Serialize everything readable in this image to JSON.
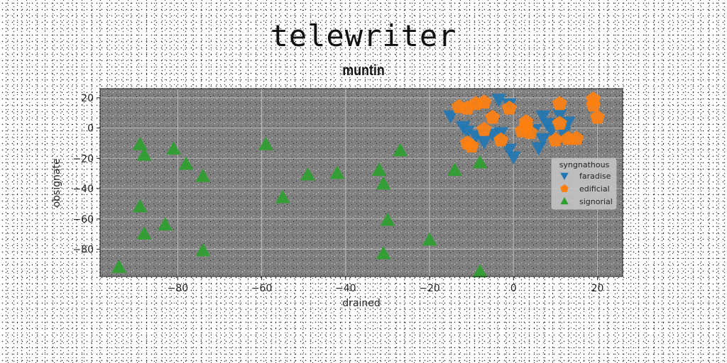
{
  "chart_data": {
    "type": "scatter",
    "title": "telewriter",
    "subtitle": "muntin",
    "xlabel": "drained",
    "ylabel": "obsignate",
    "xlim": [
      -98.5,
      26
    ],
    "ylim": [
      -98,
      26
    ],
    "xticks": [
      -80,
      -60,
      -40,
      -20,
      0,
      20
    ],
    "yticks": [
      -80,
      -60,
      -40,
      -20,
      0,
      20
    ],
    "xtick_labels": [
      "−80",
      "−60",
      "−40",
      "−20",
      "0",
      "20"
    ],
    "ytick_labels": [
      "−80",
      "−60",
      "−40",
      "−20",
      "0",
      "20"
    ],
    "grid": true,
    "legend_title": "syngnathous",
    "legend_position": "right",
    "series": [
      {
        "name": "faradise",
        "marker": "triangle-down",
        "color": "#1f77b4",
        "points": [
          [
            -3.5,
            19
          ],
          [
            -1,
            16
          ],
          [
            -15,
            8
          ],
          [
            -12,
            1
          ],
          [
            -11,
            -2
          ],
          [
            -9,
            -5
          ],
          [
            -7,
            -9
          ],
          [
            -5,
            -4
          ],
          [
            -3,
            -3
          ],
          [
            -1,
            -14
          ],
          [
            0,
            -19
          ],
          [
            7,
            8
          ],
          [
            8,
            3
          ],
          [
            9,
            -1
          ],
          [
            7,
            -7
          ],
          [
            6,
            -13
          ],
          [
            13,
            4
          ],
          [
            12,
            -3
          ],
          [
            11,
            9
          ],
          [
            5,
            -1
          ],
          [
            3,
            -2
          ]
        ]
      },
      {
        "name": "edificial",
        "marker": "pentagon",
        "color": "#ff7f0e",
        "points": [
          [
            -13,
            14
          ],
          [
            -11,
            13
          ],
          [
            -9,
            16
          ],
          [
            -7,
            17
          ],
          [
            -5,
            7
          ],
          [
            -1,
            13
          ],
          [
            3,
            1
          ],
          [
            3,
            4
          ],
          [
            4,
            -3
          ],
          [
            -7,
            -1
          ],
          [
            -11,
            -10
          ],
          [
            -10,
            -12
          ],
          [
            -3,
            -8
          ],
          [
            10,
            -8
          ],
          [
            11,
            16
          ],
          [
            11,
            3
          ],
          [
            13,
            -7
          ],
          [
            15,
            -7
          ],
          [
            19,
            19
          ],
          [
            19,
            15
          ],
          [
            20,
            7
          ],
          [
            2,
            -2
          ]
        ]
      },
      {
        "name": "signorial",
        "marker": "triangle-up",
        "color": "#2ca02c",
        "points": [
          [
            -89,
            -11
          ],
          [
            -88,
            -18
          ],
          [
            -81,
            -14
          ],
          [
            -78,
            -24
          ],
          [
            -74,
            -32
          ],
          [
            -59,
            -11
          ],
          [
            -89,
            -52
          ],
          [
            -88,
            -70
          ],
          [
            -83,
            -64
          ],
          [
            -74,
            -81
          ],
          [
            -94,
            -92
          ],
          [
            -55,
            -46
          ],
          [
            -49,
            -31
          ],
          [
            -42,
            -30
          ],
          [
            -32,
            -28
          ],
          [
            -31,
            -37
          ],
          [
            -27,
            -15
          ],
          [
            -30,
            -61
          ],
          [
            -31,
            -83
          ],
          [
            -20,
            -74
          ],
          [
            -14,
            -28
          ],
          [
            -8,
            -23
          ],
          [
            -8,
            -95
          ]
        ]
      }
    ]
  }
}
